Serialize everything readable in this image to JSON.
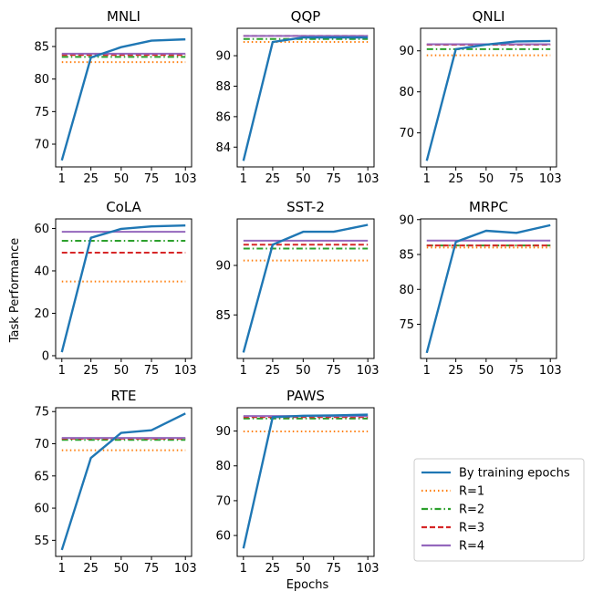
{
  "figure": {
    "ylabel": "Task Performance",
    "xlabel": "Epochs"
  },
  "legend": {
    "placement": "bottom-right",
    "entries": [
      {
        "label": "By training epochs",
        "color": "#1f77b4",
        "style": "solid"
      },
      {
        "label": "R=1",
        "color": "#ff7f0e",
        "style": "dotted"
      },
      {
        "label": "R=2",
        "color": "#2ca02c",
        "style": "dashdot"
      },
      {
        "label": "R=3",
        "color": "#d62728",
        "style": "dashed"
      },
      {
        "label": "R=4",
        "color": "#9467bd",
        "style": "solid"
      }
    ]
  },
  "chart_data": [
    {
      "type": "line",
      "title": "MNLI",
      "x": [
        1,
        25,
        50,
        75,
        103
      ],
      "xticks": [
        "1",
        "25",
        "50",
        "75",
        "103"
      ],
      "ylim": [
        66.5,
        87.8
      ],
      "yticks": [
        70,
        75,
        80,
        85
      ],
      "series": [
        {
          "name": "By training epochs",
          "values": [
            67.5,
            83.3,
            84.9,
            85.9,
            86.1
          ]
        }
      ],
      "hlines": [
        {
          "name": "R=1",
          "value": 82.6
        },
        {
          "name": "R=2",
          "value": 83.4
        },
        {
          "name": "R=3",
          "value": 83.7
        },
        {
          "name": "R=4",
          "value": 83.9
        }
      ]
    },
    {
      "type": "line",
      "title": "QQP",
      "x": [
        1,
        25,
        50,
        75,
        103
      ],
      "xticks": [
        "1",
        "25",
        "50",
        "75",
        "103"
      ],
      "ylim": [
        82.7,
        91.8
      ],
      "yticks": [
        84,
        86,
        88,
        90
      ],
      "series": [
        {
          "name": "By training epochs",
          "values": [
            83.1,
            90.9,
            91.2,
            91.2,
            91.2
          ]
        }
      ],
      "hlines": [
        {
          "name": "R=1",
          "value": 90.9
        },
        {
          "name": "R=2",
          "value": 91.1
        },
        {
          "name": "R=3",
          "value": 91.3
        },
        {
          "name": "R=4",
          "value": 91.3
        }
      ]
    },
    {
      "type": "line",
      "title": "QNLI",
      "x": [
        1,
        25,
        50,
        75,
        103
      ],
      "xticks": [
        "1",
        "25",
        "50",
        "75",
        "103"
      ],
      "ylim": [
        61.7,
        95.5
      ],
      "yticks": [
        70,
        80,
        90
      ],
      "series": [
        {
          "name": "By training epochs",
          "values": [
            63.2,
            90.4,
            91.5,
            92.3,
            92.4
          ]
        }
      ],
      "hlines": [
        {
          "name": "R=1",
          "value": 88.9
        },
        {
          "name": "R=2",
          "value": 90.4
        },
        {
          "name": "R=3",
          "value": 91.5
        },
        {
          "name": "R=4",
          "value": 91.6
        }
      ]
    },
    {
      "type": "line",
      "title": "CoLA",
      "x": [
        1,
        25,
        50,
        75,
        103
      ],
      "xticks": [
        "1",
        "25",
        "50",
        "75",
        "103"
      ],
      "ylim": [
        -1.3,
        64.5
      ],
      "yticks": [
        0,
        20,
        40,
        60
      ],
      "series": [
        {
          "name": "By training epochs",
          "values": [
            1.7,
            55.6,
            59.8,
            61.0,
            61.4
          ]
        }
      ],
      "hlines": [
        {
          "name": "R=1",
          "value": 35.0
        },
        {
          "name": "R=2",
          "value": 54.2
        },
        {
          "name": "R=3",
          "value": 48.6
        },
        {
          "name": "R=4",
          "value": 58.4
        }
      ]
    },
    {
      "type": "line",
      "title": "SST-2",
      "x": [
        1,
        25,
        50,
        75,
        103
      ],
      "xticks": [
        "1",
        "25",
        "50",
        "75",
        "103"
      ],
      "ylim": [
        80.6,
        94.7
      ],
      "yticks": [
        85,
        90
      ],
      "series": [
        {
          "name": "By training epochs",
          "values": [
            81.2,
            92.1,
            93.4,
            93.4,
            94.1
          ]
        }
      ],
      "hlines": [
        {
          "name": "R=1",
          "value": 90.5
        },
        {
          "name": "R=2",
          "value": 91.7
        },
        {
          "name": "R=3",
          "value": 92.1
        },
        {
          "name": "R=4",
          "value": 92.5
        }
      ]
    },
    {
      "type": "line",
      "title": "MRPC",
      "x": [
        1,
        25,
        50,
        75,
        103
      ],
      "xticks": [
        "1",
        "25",
        "50",
        "75",
        "103"
      ],
      "ylim": [
        70.1,
        90.1
      ],
      "yticks": [
        75,
        80,
        85,
        90
      ],
      "series": [
        {
          "name": "By training epochs",
          "values": [
            70.9,
            86.8,
            88.4,
            88.1,
            89.2
          ]
        }
      ],
      "hlines": [
        {
          "name": "R=1",
          "value": 86.0
        },
        {
          "name": "R=2",
          "value": 86.3
        },
        {
          "name": "R=3",
          "value": 86.3
        },
        {
          "name": "R=4",
          "value": 87.0
        }
      ]
    },
    {
      "type": "line",
      "title": "RTE",
      "x": [
        1,
        25,
        50,
        75,
        103
      ],
      "xticks": [
        "1",
        "25",
        "50",
        "75",
        "103"
      ],
      "ylim": [
        52.5,
        75.6
      ],
      "yticks": [
        55,
        60,
        65,
        70,
        75
      ],
      "series": [
        {
          "name": "By training epochs",
          "values": [
            53.5,
            67.8,
            71.7,
            72.1,
            74.7
          ]
        }
      ],
      "hlines": [
        {
          "name": "R=1",
          "value": 69.0
        },
        {
          "name": "R=2",
          "value": 70.6
        },
        {
          "name": "R=3",
          "value": 70.8
        },
        {
          "name": "R=4",
          "value": 70.9
        }
      ]
    },
    {
      "type": "line",
      "title": "PAWS",
      "x": [
        1,
        25,
        50,
        75,
        103
      ],
      "xticks": [
        "1",
        "25",
        "50",
        "75",
        "103"
      ],
      "ylim": [
        54.0,
        96.7
      ],
      "yticks": [
        60,
        70,
        80,
        90
      ],
      "series": [
        {
          "name": "By training epochs",
          "values": [
            56.3,
            94.0,
            94.4,
            94.5,
            94.7
          ]
        }
      ],
      "hlines": [
        {
          "name": "R=1",
          "value": 89.9
        },
        {
          "name": "R=2",
          "value": 93.6
        },
        {
          "name": "R=3",
          "value": 94.0
        },
        {
          "name": "R=4",
          "value": 94.3
        }
      ]
    }
  ]
}
